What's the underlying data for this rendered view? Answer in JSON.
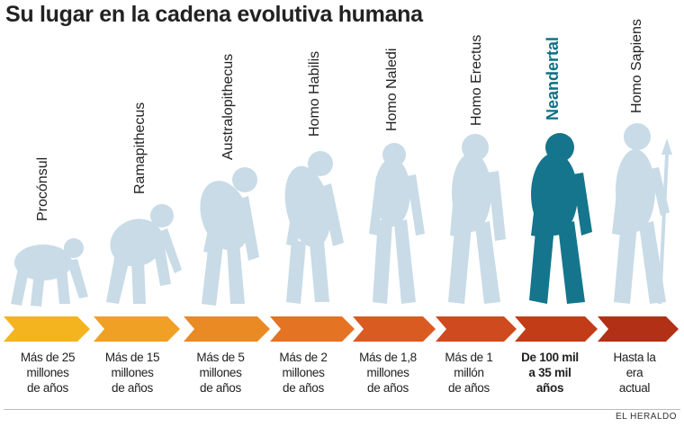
{
  "title": "Su lugar en la cadena evolutiva humana",
  "colors": {
    "figure": "#c8dbe7",
    "highlight": "#14758d",
    "arrows": [
      "#f4b41f",
      "#f0a024",
      "#ea8a25",
      "#e47324",
      "#d95b22",
      "#cf4a1e",
      "#c23c18",
      "#b23016"
    ]
  },
  "stages": [
    {
      "name": "Procónsul",
      "age": [
        "Más de 25",
        "millones",
        "de años"
      ]
    },
    {
      "name": "Ramapithecus",
      "age": [
        "Más de 15",
        "millones",
        "de años"
      ]
    },
    {
      "name": "Australopithecus",
      "age": [
        "Más de 5",
        "millones",
        "de años"
      ]
    },
    {
      "name": "Homo Habilis",
      "age": [
        "Más de 2",
        "millones",
        "de años"
      ]
    },
    {
      "name": "Homo Naledi",
      "age": [
        "Más de 1,8",
        "millones",
        "de años"
      ]
    },
    {
      "name": "Homo Erectus",
      "age": [
        "Más de 1",
        "millón",
        "de años"
      ]
    },
    {
      "name": "Neandertal",
      "age": [
        "De 100 mil",
        "a 35 mil",
        "años"
      ],
      "highlighted": true
    },
    {
      "name": "Homo Sapiens",
      "age": [
        "Hasta la",
        "era",
        "actual"
      ]
    }
  ],
  "credit": "EL HERALDO"
}
